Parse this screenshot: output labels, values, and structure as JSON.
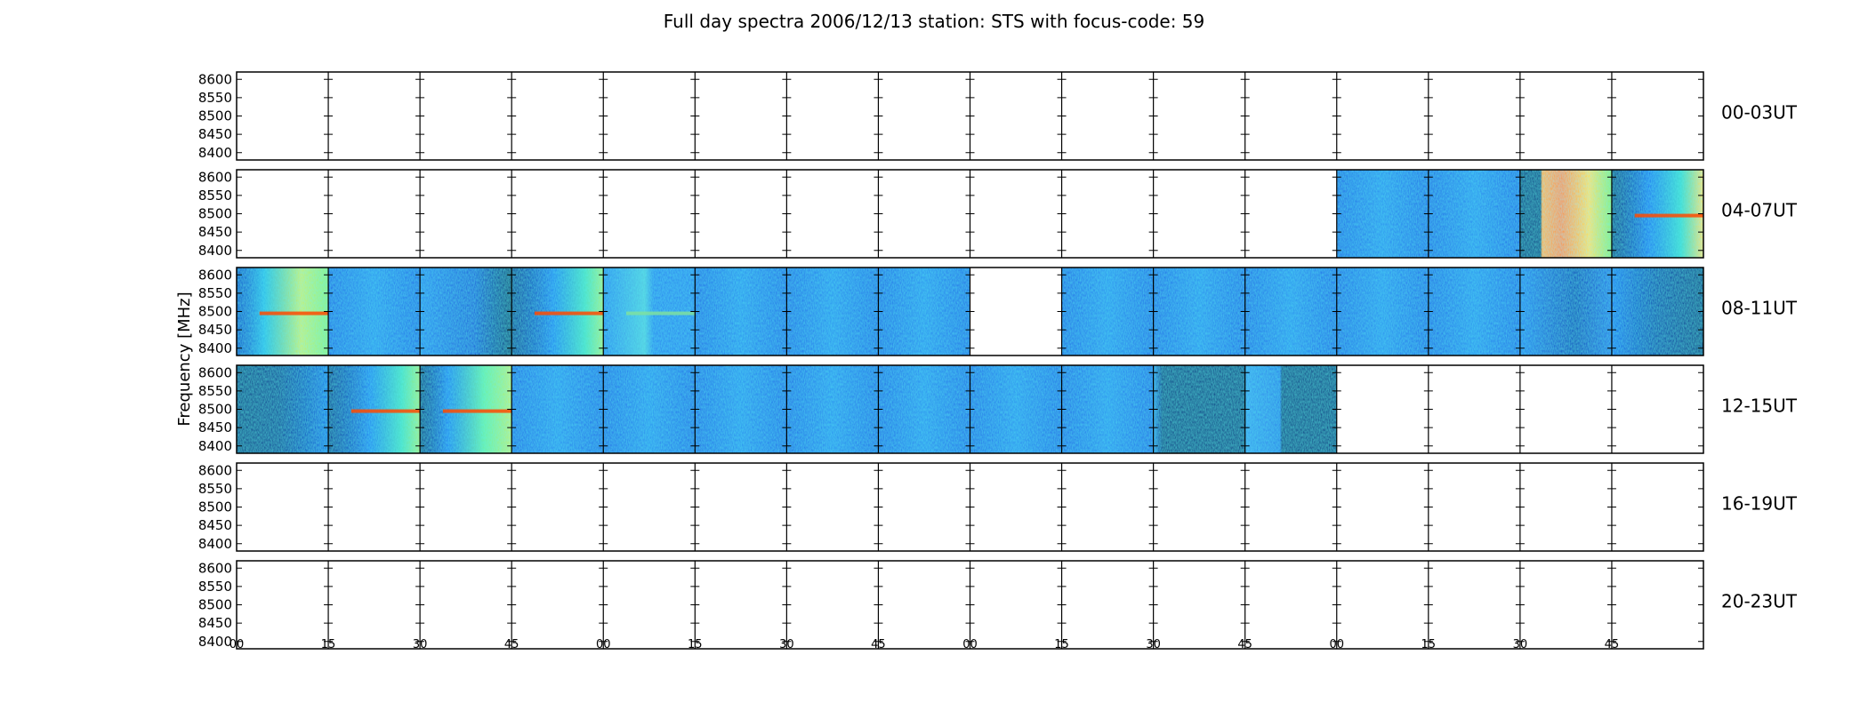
{
  "chart_data": {
    "type": "heatmap",
    "title": "Full day spectra 2006/12/13 station: STS with focus-code: 59",
    "ylabel": "Frequency [MHz]",
    "xlabel": "",
    "ylim": [
      8380,
      8620
    ],
    "y_ticks": [
      "8600",
      "8550",
      "8500",
      "8450",
      "8400"
    ],
    "x_ticks": [
      "00",
      "15",
      "30",
      "45",
      "00",
      "15",
      "30",
      "45",
      "00",
      "15",
      "30",
      "45",
      "00",
      "15",
      "30",
      "45"
    ],
    "colormap": "jet",
    "colors": {
      "low": "#00007f",
      "mid": "#2b7fff",
      "high": "#ff0000",
      "empty": "#ffffff",
      "axis": "#000000"
    },
    "rows": [
      {
        "label": "00-03UT",
        "segments": [
          "empty",
          "empty",
          "empty",
          "empty",
          "empty",
          "empty",
          "empty",
          "empty",
          "empty",
          "empty",
          "empty",
          "empty",
          "empty",
          "empty",
          "empty",
          "empty"
        ]
      },
      {
        "label": "04-07UT",
        "segments": [
          "empty",
          "empty",
          "empty",
          "empty",
          "empty",
          "empty",
          "empty",
          "empty",
          "empty",
          "empty",
          "empty",
          "empty",
          "mid",
          "mid",
          "hot-band",
          "bright-right"
        ]
      },
      {
        "label": "08-11UT",
        "segments": [
          "hot-left",
          "mid",
          "mid-dark-right",
          "bright-line",
          "mid-stripe",
          "mid",
          "mid",
          "mid",
          "empty",
          "mid",
          "mid",
          "mid",
          "mid",
          "mid",
          "dark-mid",
          "dark-fade"
        ]
      },
      {
        "label": "12-15UT",
        "segments": [
          "dark-left",
          "bright-line",
          "bright-right-line",
          "mid",
          "mid",
          "mid",
          "mid",
          "mid",
          "mid",
          "mid",
          "dark-right",
          "partial-dark",
          "empty",
          "empty",
          "empty",
          "empty"
        ]
      },
      {
        "label": "16-19UT",
        "segments": [
          "empty",
          "empty",
          "empty",
          "empty",
          "empty",
          "empty",
          "empty",
          "empty",
          "empty",
          "empty",
          "empty",
          "empty",
          "empty",
          "empty",
          "empty",
          "empty"
        ]
      },
      {
        "label": "20-23UT",
        "segments": [
          "empty",
          "empty",
          "empty",
          "empty",
          "empty",
          "empty",
          "empty",
          "empty",
          "empty",
          "empty",
          "empty",
          "empty",
          "empty",
          "empty",
          "empty",
          "empty"
        ]
      }
    ]
  }
}
